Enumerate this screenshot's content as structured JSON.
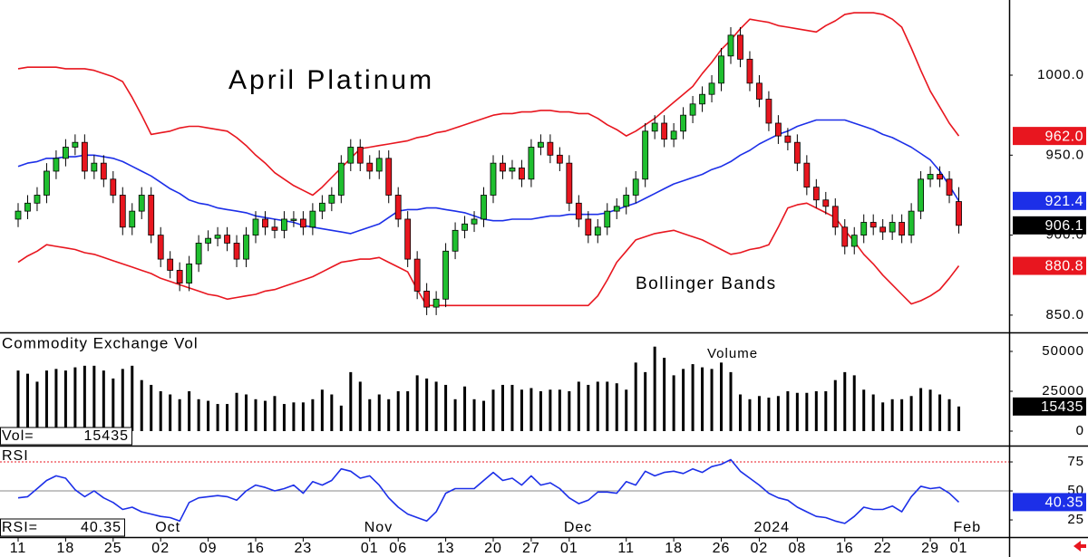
{
  "chart_data": {
    "type": "candlestick",
    "title": "April Platinum",
    "annotation": "Bollinger Bands",
    "categories": [
      "11",
      null,
      null,
      null,
      null,
      "18",
      null,
      null,
      null,
      null,
      "25",
      null,
      null,
      null,
      null,
      "02",
      null,
      null,
      null,
      null,
      "09",
      null,
      null,
      null,
      null,
      "16",
      null,
      null,
      null,
      null,
      "23",
      null,
      null,
      null,
      null,
      null,
      null,
      "01",
      null,
      null,
      "06",
      null,
      null,
      null,
      null,
      "13",
      null,
      null,
      null,
      null,
      "20",
      null,
      null,
      null,
      "27",
      null,
      null,
      null,
      "01",
      null,
      null,
      null,
      null,
      null,
      "11",
      null,
      null,
      null,
      null,
      "18",
      null,
      null,
      null,
      null,
      "26",
      null,
      null,
      null,
      "02",
      null,
      null,
      null,
      "08",
      null,
      null,
      null,
      null,
      "16",
      null,
      null,
      null,
      "22",
      null,
      null,
      null,
      null,
      "29",
      null,
      null,
      "01"
    ],
    "month_categories": [
      null,
      null,
      null,
      null,
      null,
      null,
      null,
      null,
      null,
      null,
      null,
      null,
      null,
      null,
      null,
      "Oct",
      null,
      null,
      null,
      null,
      null,
      null,
      null,
      null,
      null,
      null,
      null,
      null,
      null,
      null,
      null,
      null,
      null,
      null,
      null,
      null,
      null,
      "Nov",
      null,
      null,
      null,
      null,
      null,
      null,
      null,
      null,
      null,
      null,
      null,
      null,
      null,
      null,
      null,
      null,
      null,
      null,
      null,
      null,
      "Dec",
      null,
      null,
      null,
      null,
      null,
      null,
      null,
      null,
      null,
      null,
      null,
      null,
      null,
      null,
      null,
      null,
      null,
      null,
      null,
      "2024",
      null,
      null,
      null,
      null,
      null,
      null,
      null,
      null,
      null,
      null,
      null,
      null,
      null,
      null,
      null,
      null,
      null,
      null,
      null,
      null,
      "Feb"
    ],
    "open": [
      910,
      915,
      920,
      925,
      940,
      948,
      955,
      958,
      940,
      945,
      935,
      925,
      905,
      915,
      925,
      900,
      885,
      878,
      870,
      882,
      895,
      898,
      900,
      895,
      885,
      900,
      910,
      905,
      903,
      910,
      910,
      905,
      915,
      920,
      925,
      945,
      955,
      945,
      940,
      948,
      925,
      910,
      885,
      865,
      855,
      860,
      890,
      903,
      907,
      910,
      925,
      945,
      940,
      942,
      935,
      955,
      958,
      950,
      945,
      920,
      910,
      900,
      905,
      915,
      918,
      925,
      935,
      965,
      970,
      960,
      965,
      975,
      982,
      988,
      995,
      1012,
      1025,
      1010,
      995,
      985,
      970,
      962,
      958,
      945,
      930,
      922,
      918,
      905,
      893,
      900,
      908,
      905,
      902,
      908,
      900,
      915,
      935,
      938,
      935,
      921
    ],
    "high": [
      920,
      925,
      930,
      945,
      953,
      960,
      963,
      963,
      950,
      950,
      940,
      930,
      920,
      930,
      930,
      905,
      890,
      883,
      887,
      900,
      903,
      905,
      905,
      900,
      905,
      915,
      915,
      910,
      915,
      915,
      915,
      920,
      925,
      930,
      950,
      960,
      960,
      950,
      953,
      953,
      930,
      915,
      890,
      870,
      865,
      895,
      908,
      912,
      915,
      930,
      950,
      950,
      947,
      947,
      960,
      963,
      963,
      955,
      950,
      925,
      915,
      910,
      920,
      923,
      930,
      940,
      970,
      975,
      975,
      970,
      980,
      987,
      993,
      1000,
      1017,
      1030,
      1030,
      1015,
      1000,
      990,
      975,
      967,
      963,
      950,
      935,
      927,
      923,
      910,
      905,
      913,
      913,
      910,
      913,
      913,
      920,
      940,
      943,
      943,
      940,
      930
    ],
    "low": [
      905,
      910,
      915,
      920,
      935,
      943,
      950,
      935,
      935,
      930,
      920,
      900,
      900,
      910,
      895,
      880,
      873,
      865,
      865,
      877,
      890,
      893,
      890,
      880,
      880,
      895,
      900,
      898,
      898,
      905,
      900,
      900,
      910,
      915,
      920,
      940,
      940,
      935,
      935,
      920,
      905,
      880,
      860,
      850,
      850,
      855,
      885,
      898,
      902,
      905,
      920,
      935,
      935,
      930,
      930,
      950,
      945,
      940,
      915,
      905,
      895,
      895,
      900,
      910,
      913,
      920,
      930,
      960,
      955,
      955,
      960,
      970,
      977,
      983,
      990,
      1007,
      1005,
      990,
      980,
      965,
      957,
      953,
      940,
      925,
      917,
      913,
      900,
      888,
      888,
      895,
      900,
      897,
      897,
      895,
      895,
      910,
      930,
      930,
      920,
      901
    ],
    "close": [
      915,
      920,
      925,
      940,
      948,
      955,
      958,
      940,
      945,
      935,
      925,
      905,
      915,
      925,
      900,
      885,
      878,
      870,
      882,
      895,
      898,
      900,
      895,
      885,
      900,
      910,
      905,
      903,
      910,
      910,
      905,
      915,
      920,
      925,
      945,
      955,
      945,
      940,
      948,
      925,
      910,
      885,
      865,
      855,
      860,
      890,
      903,
      907,
      910,
      925,
      945,
      940,
      942,
      935,
      955,
      958,
      950,
      945,
      920,
      910,
      900,
      905,
      915,
      918,
      925,
      935,
      965,
      970,
      960,
      965,
      975,
      982,
      988,
      995,
      1012,
      1025,
      1010,
      995,
      985,
      970,
      962,
      958,
      945,
      930,
      922,
      918,
      905,
      893,
      900,
      908,
      905,
      902,
      908,
      900,
      915,
      935,
      938,
      935,
      925,
      906.1
    ],
    "up_color": "#1fbf2f",
    "down_color": "#e8161f",
    "upper_band": {
      "color": "#e8161f",
      "values": [
        1004,
        1005,
        1005,
        1005,
        1005,
        1004,
        1004,
        1004,
        1003,
        1001,
        999,
        996,
        986,
        975,
        963,
        964,
        965,
        967,
        968,
        968,
        967,
        966,
        965,
        961,
        956,
        950,
        945,
        939,
        935,
        931,
        928,
        925,
        930,
        936,
        942,
        948,
        954,
        955,
        956,
        957,
        958,
        959,
        961,
        962,
        964,
        965,
        967,
        969,
        971,
        973,
        975,
        976,
        976,
        977,
        977,
        978,
        978,
        977,
        977,
        976,
        976,
        973,
        969,
        966,
        962,
        965,
        969,
        973,
        978,
        983,
        988,
        993,
        1001,
        1008,
        1016,
        1022,
        1029,
        1035,
        1034,
        1033,
        1031,
        1030,
        1029,
        1028,
        1027,
        1031,
        1034,
        1038,
        1039,
        1039,
        1039,
        1038,
        1035,
        1030,
        1017,
        1003,
        990,
        980,
        970,
        962
      ]
    },
    "middle_band": {
      "color": "#1c2fe8",
      "values": [
        943,
        945,
        946,
        948,
        948,
        949,
        949,
        950,
        950,
        949,
        948,
        946,
        943,
        940,
        937,
        933,
        929,
        926,
        922,
        920,
        919,
        917,
        916,
        915,
        914,
        912,
        911,
        910,
        909,
        908,
        906,
        905,
        904,
        903,
        902,
        901,
        903,
        905,
        907,
        911,
        915,
        916,
        916,
        917,
        917,
        916,
        915,
        914,
        912,
        910,
        909,
        909,
        910,
        910,
        910,
        911,
        912,
        912,
        913,
        913,
        913,
        913,
        914,
        916,
        918,
        920,
        923,
        926,
        929,
        932,
        934,
        936,
        938,
        941,
        943,
        946,
        950,
        953,
        957,
        960,
        963,
        965,
        968,
        970,
        972,
        972,
        972,
        972,
        970,
        968,
        966,
        963,
        961,
        958,
        955,
        951,
        947,
        940,
        931,
        921.4
      ]
    },
    "lower_band": {
      "color": "#e8161f",
      "values": [
        883,
        887,
        890,
        894,
        893,
        892,
        891,
        889,
        888,
        886,
        884,
        882,
        880,
        878,
        876,
        873,
        871,
        869,
        867,
        865,
        863,
        862,
        860,
        861,
        862,
        863,
        865,
        866,
        868,
        870,
        872,
        874,
        877,
        880,
        883,
        884,
        885,
        885,
        886,
        883,
        880,
        877,
        866,
        856,
        856,
        856,
        856,
        856,
        856,
        856,
        856,
        856,
        856,
        856,
        856,
        856,
        856,
        856,
        856,
        856,
        856,
        862,
        872,
        883,
        890,
        897,
        899,
        901,
        902,
        903,
        901,
        899,
        897,
        894,
        891,
        888,
        889,
        891,
        892,
        894,
        905,
        917,
        919,
        920,
        917,
        914,
        911,
        903,
        896,
        888,
        882,
        875,
        869,
        863,
        857,
        859,
        862,
        866,
        873,
        880.8
      ]
    },
    "ylim": [
      839.2,
      1047
    ],
    "yticks": [
      {
        "value": 850,
        "label": "850.0"
      },
      {
        "value": 900,
        "label": "900.0"
      },
      {
        "value": 950,
        "label": "950.0"
      },
      {
        "value": 1000,
        "label": "1000.0"
      }
    ],
    "tags": [
      {
        "value": 962,
        "label": "962.0",
        "color": "#e8161f"
      },
      {
        "value": 921.4,
        "label": "921.4",
        "color": "#1c2fe8"
      },
      {
        "value": 906.1,
        "label": "906.1",
        "color": "#000000"
      },
      {
        "value": 880.8,
        "label": "880.8",
        "color": "#e8161f"
      }
    ],
    "volume": {
      "title": "Commodity Exchange Vol",
      "annotation": "Volume",
      "color": "#000000",
      "values": [
        38000,
        36000,
        31000,
        38000,
        39000,
        38000,
        40000,
        41000,
        41000,
        38000,
        33000,
        39000,
        41000,
        32000,
        29000,
        25000,
        23000,
        20000,
        25000,
        20000,
        19000,
        17000,
        17000,
        24000,
        23000,
        20000,
        19000,
        22000,
        17000,
        18000,
        18000,
        20000,
        26000,
        23000,
        16000,
        37000,
        31000,
        20000,
        23000,
        20000,
        25000,
        25000,
        35000,
        33000,
        31000,
        29000,
        20000,
        28000,
        20000,
        19000,
        26000,
        29000,
        29000,
        26000,
        27000,
        25000,
        26000,
        26000,
        25000,
        31000,
        29000,
        31000,
        31000,
        30000,
        26000,
        43000,
        37000,
        53000,
        46000,
        35000,
        39000,
        42000,
        40000,
        39000,
        43000,
        37000,
        23000,
        20000,
        22000,
        21000,
        22000,
        25000,
        24000,
        24000,
        25000,
        25000,
        32000,
        37000,
        35000,
        26000,
        23000,
        18000,
        20000,
        20000,
        22000,
        27000,
        26000,
        23000,
        20000,
        15435
      ],
      "ylim": [
        -9091,
        61364
      ],
      "yticks": [
        0,
        25000,
        50000
      ],
      "readout_label": "Vol=",
      "readout": 15435,
      "tag": {
        "value": 15435,
        "color": "#000000"
      }
    },
    "rsi": {
      "title": "RSI",
      "color": "#1c2fe8",
      "values": [
        44,
        45,
        52,
        59,
        63,
        61,
        51,
        45,
        50,
        44,
        40,
        34,
        36,
        32,
        30,
        28,
        27,
        24,
        40,
        44,
        45,
        46,
        45,
        42,
        50,
        55,
        53,
        50,
        52,
        55,
        48,
        58,
        55,
        59,
        69,
        67,
        61,
        63,
        55,
        44,
        36,
        30,
        27,
        24,
        32,
        48,
        52,
        52,
        52,
        59,
        66,
        59,
        61,
        55,
        63,
        55,
        57,
        52,
        44,
        39,
        42,
        49,
        49,
        48,
        58,
        55,
        67,
        63,
        66,
        67,
        65,
        69,
        66,
        71,
        73,
        77,
        67,
        61,
        55,
        48,
        44,
        42,
        36,
        32,
        28,
        27,
        24,
        22,
        28,
        36,
        34,
        34,
        37,
        32,
        45,
        54,
        52,
        53,
        48,
        40.35
      ],
      "ylim": [
        10.2,
        88.3
      ],
      "yticks": [
        25,
        50,
        75
      ],
      "guides": [
        {
          "value": 75,
          "color": "#e8161f"
        },
        {
          "value": 50,
          "color": "#8a8a8a"
        }
      ],
      "readout_label": "RSI=",
      "readout": 40.35,
      "tag": {
        "value": 40.35,
        "color": "#1c2fe8"
      }
    }
  }
}
